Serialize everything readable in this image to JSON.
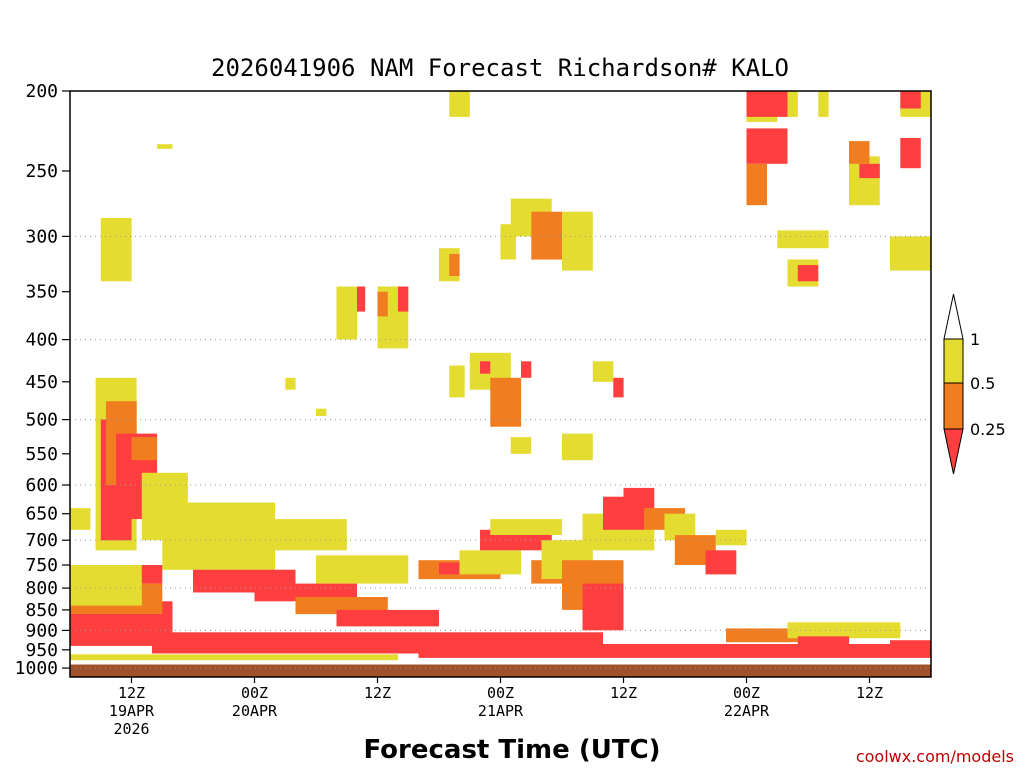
{
  "chart_data": {
    "type": "heatmap",
    "title": "2026041906 NAM Forecast Richardson# KALO",
    "xlabel": "Forecast Time (UTC)",
    "ylabel": "",
    "credit": "coolwx.com/models",
    "y_axis": {
      "scale": "log-pressure",
      "range": [
        1025,
        200
      ],
      "ticks": [
        200,
        250,
        300,
        350,
        400,
        450,
        500,
        550,
        600,
        650,
        700,
        750,
        800,
        850,
        900,
        950,
        1000
      ],
      "grid_levels": [
        300,
        400,
        500,
        600,
        700,
        800,
        900,
        1000
      ]
    },
    "x_axis": {
      "unit": "hours since 2026-04-19 06Z",
      "range": [
        0,
        84
      ],
      "ticks": [
        {
          "hour": 6,
          "lines": [
            "12Z",
            "19APR",
            "2026"
          ]
        },
        {
          "hour": 18,
          "lines": [
            "00Z",
            "20APR"
          ]
        },
        {
          "hour": 30,
          "lines": [
            "12Z"
          ]
        },
        {
          "hour": 42,
          "lines": [
            "00Z",
            "21APR"
          ]
        },
        {
          "hour": 54,
          "lines": [
            "12Z"
          ]
        },
        {
          "hour": 66,
          "lines": [
            "00Z",
            "22APR"
          ]
        },
        {
          "hour": 78,
          "lines": [
            "12Z"
          ]
        }
      ]
    },
    "colorbar": {
      "colors": {
        "low": "#ff3f3f",
        "mid": "#f07d20",
        "high": "#e5dc32",
        "top": "#ffffff"
      },
      "labels": [
        "1",
        "0.5",
        "0.25"
      ],
      "bins": [
        {
          "class": "low",
          "range": "< 0.25"
        },
        {
          "class": "mid",
          "range": "0.25 - 0.5"
        },
        {
          "class": "high",
          "range": "0.5 - 1"
        }
      ]
    },
    "ground": {
      "color": "#a0522d",
      "pressure": 990
    },
    "regions": [
      {
        "class": "high",
        "t": [
          2.5,
          6.5
        ],
        "p": [
          720,
          445
        ]
      },
      {
        "class": "low",
        "t": [
          3,
          6
        ],
        "p": [
          700,
          500
        ]
      },
      {
        "class": "mid",
        "t": [
          3.5,
          6.5
        ],
        "p": [
          600,
          475
        ]
      },
      {
        "class": "low",
        "t": [
          4.5,
          8.5
        ],
        "p": [
          660,
          520
        ]
      },
      {
        "class": "mid",
        "t": [
          6,
          8.5
        ],
        "p": [
          560,
          525
        ]
      },
      {
        "class": "high",
        "t": [
          7,
          11.5
        ],
        "p": [
          700,
          580
        ]
      },
      {
        "class": "high",
        "t": [
          9,
          20
        ],
        "p": [
          760,
          630
        ]
      },
      {
        "class": "high",
        "t": [
          15,
          27
        ],
        "p": [
          720,
          660
        ]
      },
      {
        "class": "high",
        "t": [
          24,
          33
        ],
        "p": [
          790,
          730
        ]
      },
      {
        "class": "low",
        "t": [
          12,
          22
        ],
        "p": [
          810,
          760
        ]
      },
      {
        "class": "low",
        "t": [
          18,
          28
        ],
        "p": [
          830,
          790
        ]
      },
      {
        "class": "mid",
        "t": [
          22,
          31
        ],
        "p": [
          860,
          820
        ]
      },
      {
        "class": "low",
        "t": [
          26,
          36
        ],
        "p": [
          890,
          850
        ]
      },
      {
        "class": "low",
        "t": [
          0,
          10
        ],
        "p": [
          940,
          830
        ]
      },
      {
        "class": "mid",
        "t": [
          0,
          9
        ],
        "p": [
          860,
          790
        ]
      },
      {
        "class": "low",
        "t": [
          4,
          9
        ],
        "p": [
          790,
          750
        ]
      },
      {
        "class": "high",
        "t": [
          0,
          7
        ],
        "p": [
          840,
          750
        ]
      },
      {
        "class": "high",
        "t": [
          0,
          2
        ],
        "p": [
          680,
          640
        ]
      },
      {
        "class": "low",
        "t": [
          8,
          52
        ],
        "p": [
          960,
          905
        ]
      },
      {
        "class": "low",
        "t": [
          34,
          84
        ],
        "p": [
          972,
          935
        ]
      },
      {
        "class": "high",
        "t": [
          0,
          32
        ],
        "p": [
          978,
          962
        ]
      },
      {
        "class": "mid",
        "t": [
          34,
          42
        ],
        "p": [
          780,
          740
        ]
      },
      {
        "class": "low",
        "t": [
          36,
          42
        ],
        "p": [
          770,
          745
        ]
      },
      {
        "class": "high",
        "t": [
          38,
          44
        ],
        "p": [
          770,
          720
        ]
      },
      {
        "class": "low",
        "t": [
          40,
          47
        ],
        "p": [
          720,
          680
        ]
      },
      {
        "class": "high",
        "t": [
          41,
          48
        ],
        "p": [
          690,
          660
        ]
      },
      {
        "class": "mid",
        "t": [
          45,
          50
        ],
        "p": [
          790,
          740
        ]
      },
      {
        "class": "high",
        "t": [
          46,
          51
        ],
        "p": [
          780,
          700
        ]
      },
      {
        "class": "mid",
        "t": [
          48,
          54
        ],
        "p": [
          850,
          740
        ]
      },
      {
        "class": "low",
        "t": [
          50,
          54
        ],
        "p": [
          900,
          790
        ]
      },
      {
        "class": "high",
        "t": [
          50,
          57
        ],
        "p": [
          720,
          650
        ]
      },
      {
        "class": "low",
        "t": [
          52,
          56
        ],
        "p": [
          680,
          620
        ]
      },
      {
        "class": "low",
        "t": [
          54,
          57
        ],
        "p": [
          650,
          605
        ]
      },
      {
        "class": "mid",
        "t": [
          56,
          60
        ],
        "p": [
          680,
          640
        ]
      },
      {
        "class": "high",
        "t": [
          58,
          61
        ],
        "p": [
          700,
          650
        ]
      },
      {
        "class": "mid",
        "t": [
          59,
          63
        ],
        "p": [
          750,
          690
        ]
      },
      {
        "class": "low",
        "t": [
          62,
          65
        ],
        "p": [
          770,
          720
        ]
      },
      {
        "class": "high",
        "t": [
          63,
          66
        ],
        "p": [
          710,
          680
        ]
      },
      {
        "class": "mid",
        "t": [
          64,
          75
        ],
        "p": [
          930,
          895
        ]
      },
      {
        "class": "high",
        "t": [
          70,
          81
        ],
        "p": [
          920,
          880
        ]
      },
      {
        "class": "low",
        "t": [
          71,
          76
        ],
        "p": [
          950,
          915
        ]
      },
      {
        "class": "low",
        "t": [
          80,
          84
        ],
        "p": [
          960,
          925
        ]
      },
      {
        "class": "high",
        "t": [
          37,
          38.5
        ],
        "p": [
          470,
          430
        ]
      },
      {
        "class": "high",
        "t": [
          39,
          43
        ],
        "p": [
          460,
          415
        ]
      },
      {
        "class": "low",
        "t": [
          40,
          41
        ],
        "p": [
          440,
          425
        ]
      },
      {
        "class": "mid",
        "t": [
          41,
          44
        ],
        "p": [
          510,
          445
        ]
      },
      {
        "class": "high",
        "t": [
          43,
          45
        ],
        "p": [
          550,
          525
        ]
      },
      {
        "class": "low",
        "t": [
          44,
          45
        ],
        "p": [
          445,
          425
        ]
      },
      {
        "class": "high",
        "t": [
          48,
          51
        ],
        "p": [
          560,
          520
        ]
      },
      {
        "class": "high",
        "t": [
          51,
          53
        ],
        "p": [
          450,
          425
        ]
      },
      {
        "class": "low",
        "t": [
          53,
          54
        ],
        "p": [
          470,
          445
        ]
      },
      {
        "class": "high",
        "t": [
          37,
          39
        ],
        "p": [
          215,
          200
        ]
      },
      {
        "class": "high",
        "t": [
          43,
          47
        ],
        "p": [
          300,
          270
        ]
      },
      {
        "class": "mid",
        "t": [
          45,
          48
        ],
        "p": [
          320,
          280
        ]
      },
      {
        "class": "high",
        "t": [
          48,
          51
        ],
        "p": [
          330,
          280
        ]
      },
      {
        "class": "high",
        "t": [
          42,
          43.5
        ],
        "p": [
          320,
          290
        ]
      },
      {
        "class": "high",
        "t": [
          26,
          28
        ],
        "p": [
          400,
          345
        ]
      },
      {
        "class": "low",
        "t": [
          28,
          28.8
        ],
        "p": [
          370,
          345
        ]
      },
      {
        "class": "high",
        "t": [
          30,
          33
        ],
        "p": [
          410,
          345
        ]
      },
      {
        "class": "mid",
        "t": [
          30,
          31
        ],
        "p": [
          375,
          350
        ]
      },
      {
        "class": "low",
        "t": [
          32,
          33
        ],
        "p": [
          370,
          345
        ]
      },
      {
        "class": "high",
        "t": [
          36,
          38
        ],
        "p": [
          340,
          310
        ]
      },
      {
        "class": "mid",
        "t": [
          37,
          38
        ],
        "p": [
          335,
          315
        ]
      },
      {
        "class": "high",
        "t": [
          3,
          6
        ],
        "p": [
          340,
          285
        ]
      },
      {
        "class": "high",
        "t": [
          8.5,
          10
        ],
        "p": [
          235,
          232
        ]
      },
      {
        "class": "high",
        "t": [
          21,
          22
        ],
        "p": [
          460,
          445
        ]
      },
      {
        "class": "high",
        "t": [
          24,
          25
        ],
        "p": [
          495,
          485
        ]
      },
      {
        "class": "high",
        "t": [
          66,
          69
        ],
        "p": [
          218,
          200
        ]
      },
      {
        "class": "low",
        "t": [
          66,
          70
        ],
        "p": [
          215,
          200
        ]
      },
      {
        "class": "low",
        "t": [
          66,
          70
        ],
        "p": [
          245,
          222
        ]
      },
      {
        "class": "mid",
        "t": [
          66,
          68
        ],
        "p": [
          275,
          245
        ]
      },
      {
        "class": "high",
        "t": [
          70,
          71
        ],
        "p": [
          215,
          200
        ]
      },
      {
        "class": "high",
        "t": [
          73,
          74
        ],
        "p": [
          215,
          200
        ]
      },
      {
        "class": "high",
        "t": [
          69,
          74
        ],
        "p": [
          310,
          295
        ]
      },
      {
        "class": "high",
        "t": [
          70,
          73
        ],
        "p": [
          345,
          320
        ]
      },
      {
        "class": "low",
        "t": [
          71,
          73
        ],
        "p": [
          340,
          325
        ]
      },
      {
        "class": "high",
        "t": [
          76,
          79
        ],
        "p": [
          275,
          240
        ]
      },
      {
        "class": "low",
        "t": [
          77,
          79
        ],
        "p": [
          255,
          245
        ]
      },
      {
        "class": "mid",
        "t": [
          76,
          78
        ],
        "p": [
          245,
          230
        ]
      },
      {
        "class": "high",
        "t": [
          81,
          84
        ],
        "p": [
          215,
          200
        ]
      },
      {
        "class": "low",
        "t": [
          81,
          83
        ],
        "p": [
          210,
          200
        ]
      },
      {
        "class": "low",
        "t": [
          81,
          83
        ],
        "p": [
          248,
          228
        ]
      },
      {
        "class": "high",
        "t": [
          80,
          84
        ],
        "p": [
          330,
          300
        ]
      }
    ]
  }
}
